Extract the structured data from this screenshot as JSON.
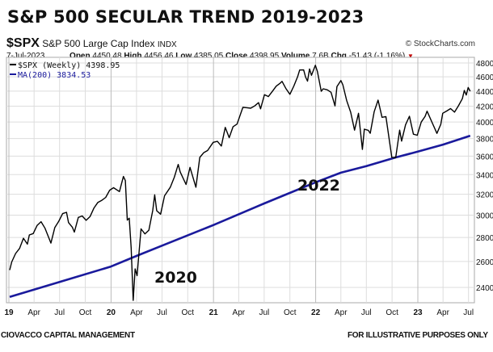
{
  "title": "S&P 500 SECULAR TREND 2019-2023",
  "header": {
    "symbol": "$SPX",
    "name": "S&P 500 Large Cap Index",
    "exchange": "INDX",
    "source": "© StockCharts.com",
    "date": "7-Jul-2023",
    "open_label": "Open",
    "open": "4450.48",
    "high_label": "High",
    "high": "4456.46",
    "low_label": "Low",
    "low": "4385.05",
    "close_label": "Close",
    "close": "4398.95",
    "volume_label": "Volume",
    "volume": "7.6B",
    "chg_label": "Chg",
    "chg": "-51.43 (-1.16%)",
    "down_color": "#c00000"
  },
  "footer": {
    "left": "CIOVACCO CAPITAL MANAGEMENT",
    "right": "FOR ILLUSTRATIVE PURPOSES ONLY"
  },
  "chart_data": {
    "type": "line",
    "yscale": "log",
    "ylim": [
      2250,
      4850
    ],
    "yticks": [
      2400,
      2600,
      2800,
      3000,
      3200,
      3400,
      3600,
      3800,
      4000,
      4200,
      4400,
      4600,
      4800
    ],
    "xticks": [
      {
        "date": "2019-01-01",
        "label": "19",
        "bold": true
      },
      {
        "date": "2019-04-01",
        "label": "Apr"
      },
      {
        "date": "2019-07-01",
        "label": "Jul"
      },
      {
        "date": "2019-10-01",
        "label": "Oct"
      },
      {
        "date": "2020-01-01",
        "label": "20",
        "bold": true
      },
      {
        "date": "2020-04-01",
        "label": "Apr"
      },
      {
        "date": "2020-07-01",
        "label": "Jul"
      },
      {
        "date": "2020-10-01",
        "label": "Oct"
      },
      {
        "date": "2021-01-01",
        "label": "21",
        "bold": true
      },
      {
        "date": "2021-04-01",
        "label": "Apr"
      },
      {
        "date": "2021-07-01",
        "label": "Jul"
      },
      {
        "date": "2021-10-01",
        "label": "Oct"
      },
      {
        "date": "2022-01-01",
        "label": "22",
        "bold": true
      },
      {
        "date": "2022-04-01",
        "label": "Apr"
      },
      {
        "date": "2022-07-01",
        "label": "Jul"
      },
      {
        "date": "2022-10-01",
        "label": "Oct"
      },
      {
        "date": "2023-01-01",
        "label": "23",
        "bold": true
      },
      {
        "date": "2023-04-01",
        "label": "Apr"
      },
      {
        "date": "2023-07-01",
        "label": "Jul"
      }
    ],
    "grid": true,
    "legend_position": "top-left",
    "series": [
      {
        "name": "$SPX (Weekly)",
        "legend_value": "4398.95",
        "color": "#000000",
        "points": [
          [
            "2019-01-04",
            2532
          ],
          [
            "2019-01-11",
            2596
          ],
          [
            "2019-01-25",
            2665
          ],
          [
            "2019-02-08",
            2707
          ],
          [
            "2019-02-22",
            2793
          ],
          [
            "2019-03-08",
            2743
          ],
          [
            "2019-03-15",
            2822
          ],
          [
            "2019-03-29",
            2834
          ],
          [
            "2019-04-12",
            2907
          ],
          [
            "2019-04-26",
            2940
          ],
          [
            "2019-05-10",
            2881
          ],
          [
            "2019-05-31",
            2752
          ],
          [
            "2019-06-14",
            2887
          ],
          [
            "2019-06-28",
            2942
          ],
          [
            "2019-07-12",
            3014
          ],
          [
            "2019-07-26",
            3026
          ],
          [
            "2019-08-02",
            2932
          ],
          [
            "2019-08-16",
            2889
          ],
          [
            "2019-08-23",
            2847
          ],
          [
            "2019-09-06",
            2979
          ],
          [
            "2019-09-20",
            2992
          ],
          [
            "2019-10-04",
            2952
          ],
          [
            "2019-10-18",
            2986
          ],
          [
            "2019-11-01",
            3067
          ],
          [
            "2019-11-15",
            3120
          ],
          [
            "2019-11-29",
            3141
          ],
          [
            "2019-12-13",
            3169
          ],
          [
            "2019-12-27",
            3240
          ],
          [
            "2020-01-10",
            3265
          ],
          [
            "2020-01-31",
            3226
          ],
          [
            "2020-02-14",
            3380
          ],
          [
            "2020-02-21",
            3338
          ],
          [
            "2020-02-28",
            2954
          ],
          [
            "2020-03-06",
            2972
          ],
          [
            "2020-03-13",
            2711
          ],
          [
            "2020-03-20",
            2305
          ],
          [
            "2020-03-27",
            2541
          ],
          [
            "2020-04-03",
            2489
          ],
          [
            "2020-04-17",
            2875
          ],
          [
            "2020-05-01",
            2831
          ],
          [
            "2020-05-15",
            2864
          ],
          [
            "2020-05-29",
            3044
          ],
          [
            "2020-06-05",
            3194
          ],
          [
            "2020-06-12",
            3041
          ],
          [
            "2020-06-26",
            3009
          ],
          [
            "2020-07-10",
            3185
          ],
          [
            "2020-07-31",
            3271
          ],
          [
            "2020-08-14",
            3373
          ],
          [
            "2020-08-28",
            3508
          ],
          [
            "2020-09-04",
            3427
          ],
          [
            "2020-09-25",
            3298
          ],
          [
            "2020-10-09",
            3477
          ],
          [
            "2020-10-30",
            3270
          ],
          [
            "2020-11-13",
            3585
          ],
          [
            "2020-11-27",
            3638
          ],
          [
            "2020-12-11",
            3663
          ],
          [
            "2020-12-31",
            3756
          ],
          [
            "2021-01-15",
            3768
          ],
          [
            "2021-01-29",
            3714
          ],
          [
            "2021-02-12",
            3934
          ],
          [
            "2021-02-26",
            3811
          ],
          [
            "2021-03-12",
            3943
          ],
          [
            "2021-03-26",
            3974
          ],
          [
            "2021-04-16",
            4185
          ],
          [
            "2021-04-30",
            4181
          ],
          [
            "2021-05-14",
            4174
          ],
          [
            "2021-05-28",
            4204
          ],
          [
            "2021-06-11",
            4247
          ],
          [
            "2021-06-18",
            4166
          ],
          [
            "2021-07-02",
            4352
          ],
          [
            "2021-07-16",
            4327
          ],
          [
            "2021-07-30",
            4395
          ],
          [
            "2021-08-13",
            4468
          ],
          [
            "2021-08-27",
            4509
          ],
          [
            "2021-09-03",
            4535
          ],
          [
            "2021-09-17",
            4433
          ],
          [
            "2021-10-01",
            4357
          ],
          [
            "2021-10-15",
            4471
          ],
          [
            "2021-10-29",
            4605
          ],
          [
            "2021-11-05",
            4697
          ],
          [
            "2021-11-19",
            4698
          ],
          [
            "2021-11-26",
            4595
          ],
          [
            "2021-12-03",
            4538
          ],
          [
            "2021-12-10",
            4712
          ],
          [
            "2021-12-17",
            4620
          ],
          [
            "2021-12-31",
            4766
          ],
          [
            "2022-01-07",
            4677
          ],
          [
            "2022-01-21",
            4398
          ],
          [
            "2022-01-28",
            4432
          ],
          [
            "2022-02-11",
            4419
          ],
          [
            "2022-02-25",
            4385
          ],
          [
            "2022-03-11",
            4204
          ],
          [
            "2022-03-18",
            4463
          ],
          [
            "2022-04-01",
            4546
          ],
          [
            "2022-04-08",
            4488
          ],
          [
            "2022-04-22",
            4272
          ],
          [
            "2022-05-06",
            4123
          ],
          [
            "2022-05-20",
            3901
          ],
          [
            "2022-06-03",
            4109
          ],
          [
            "2022-06-17",
            3675
          ],
          [
            "2022-06-24",
            3912
          ],
          [
            "2022-07-08",
            3899
          ],
          [
            "2022-07-15",
            3863
          ],
          [
            "2022-07-29",
            4130
          ],
          [
            "2022-08-12",
            4280
          ],
          [
            "2022-08-26",
            4058
          ],
          [
            "2022-09-09",
            4067
          ],
          [
            "2022-09-30",
            3586
          ],
          [
            "2022-10-14",
            3583
          ],
          [
            "2022-10-28",
            3901
          ],
          [
            "2022-11-04",
            3771
          ],
          [
            "2022-11-18",
            3965
          ],
          [
            "2022-12-02",
            4072
          ],
          [
            "2022-12-16",
            3852
          ],
          [
            "2022-12-30",
            3840
          ],
          [
            "2023-01-13",
            3999
          ],
          [
            "2023-01-27",
            4071
          ],
          [
            "2023-02-03",
            4136
          ],
          [
            "2023-02-24",
            3970
          ],
          [
            "2023-03-10",
            3862
          ],
          [
            "2023-03-24",
            3971
          ],
          [
            "2023-03-31",
            4109
          ],
          [
            "2023-04-14",
            4138
          ],
          [
            "2023-04-28",
            4169
          ],
          [
            "2023-05-12",
            4124
          ],
          [
            "2023-05-26",
            4205
          ],
          [
            "2023-06-09",
            4299
          ],
          [
            "2023-06-16",
            4410
          ],
          [
            "2023-06-23",
            4348
          ],
          [
            "2023-06-30",
            4450
          ],
          [
            "2023-07-07",
            4399
          ]
        ]
      },
      {
        "name": "MA(200)",
        "legend_value": "3834.53",
        "color": "#1a1a9c",
        "points": [
          [
            "2019-01-04",
            2330
          ],
          [
            "2019-07-01",
            2440
          ],
          [
            "2020-01-01",
            2560
          ],
          [
            "2020-04-01",
            2645
          ],
          [
            "2020-07-01",
            2730
          ],
          [
            "2021-01-01",
            2910
          ],
          [
            "2021-07-01",
            3110
          ],
          [
            "2022-01-01",
            3320
          ],
          [
            "2022-04-01",
            3420
          ],
          [
            "2022-07-01",
            3490
          ],
          [
            "2022-10-14",
            3585
          ],
          [
            "2023-01-01",
            3650
          ],
          [
            "2023-04-01",
            3730
          ],
          [
            "2023-07-07",
            3834.53
          ]
        ]
      }
    ],
    "annotations": [
      {
        "text": "2020"
      },
      {
        "text": "2022"
      }
    ]
  }
}
